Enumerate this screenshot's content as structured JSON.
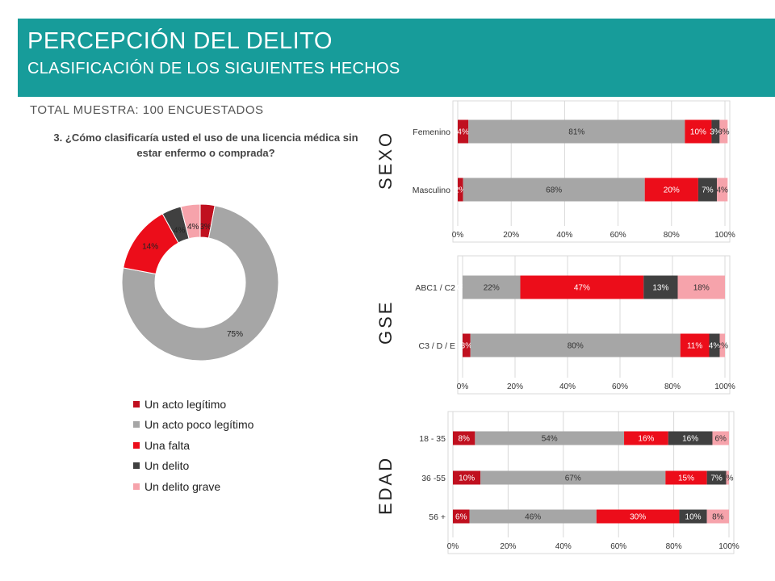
{
  "header": {
    "title": "PERCEPCIÓN DEL DELITO",
    "subtitle": "CLASIFICACIÓN DE LOS SIGUIENTES HECHOS"
  },
  "sample": "TOTAL MUESTRA: 100 ENCUESTADOS",
  "question": "3. ¿Cómo clasificaría usted el uso de una licencia médica sin estar enfermo o comprada?",
  "colors": {
    "accent": "#179c9a",
    "series": [
      "#c0101f",
      "#a6a6a6",
      "#ec0d1a",
      "#404040",
      "#f6a3ab"
    ]
  },
  "legend": [
    "Un acto legítimo",
    "Un acto poco legítimo",
    "Una falta",
    "Un delito",
    "Un delito grave"
  ],
  "panel_titles": {
    "sexo": "SEXO",
    "gse": "GSE",
    "edad": "EDAD"
  },
  "chart_data": [
    {
      "type": "pie",
      "variant": "donut",
      "labels": [
        "Un acto legítimo",
        "Un acto poco legítimo",
        "Una falta",
        "Un delito",
        "Un delito grave"
      ],
      "values": [
        3,
        75,
        14,
        4,
        4
      ],
      "data_labels": [
        "3%",
        "75%",
        "14%",
        "4%",
        "4%"
      ]
    },
    {
      "type": "bar",
      "orientation": "horizontal",
      "stacked": true,
      "group": "SEXO",
      "categories": [
        "Femenino",
        "Masculino"
      ],
      "series": [
        {
          "name": "Un acto legítimo",
          "values": [
            4,
            2
          ],
          "labels": [
            "4%",
            "2%"
          ]
        },
        {
          "name": "Un acto poco legítimo",
          "values": [
            81,
            68
          ],
          "labels": [
            "81%",
            "68%"
          ]
        },
        {
          "name": "Una falta",
          "values": [
            10,
            20
          ],
          "labels": [
            "10%",
            "20%"
          ]
        },
        {
          "name": "Un delito",
          "values": [
            3,
            7
          ],
          "labels": [
            "3%",
            "7%"
          ]
        },
        {
          "name": "Un delito grave",
          "values": [
            3,
            4
          ],
          "labels": [
            "3%",
            "4%"
          ]
        }
      ],
      "xticks": [
        "0%",
        "20%",
        "40%",
        "60%",
        "80%",
        "100%"
      ],
      "xlim": [
        0,
        100
      ]
    },
    {
      "type": "bar",
      "orientation": "horizontal",
      "stacked": true,
      "group": "GSE",
      "categories": [
        "ABC1 / C2",
        "C3 / D / E"
      ],
      "series": [
        {
          "name": "Un acto legítimo",
          "values": [
            0,
            3
          ],
          "labels": [
            "0%",
            "3%"
          ]
        },
        {
          "name": "Un acto poco legítimo",
          "values": [
            22,
            80
          ],
          "labels": [
            "22%",
            "80%"
          ]
        },
        {
          "name": "Una falta",
          "values": [
            47,
            11
          ],
          "labels": [
            "47%",
            "11%"
          ]
        },
        {
          "name": "Un delito",
          "values": [
            13,
            4
          ],
          "labels": [
            "13%",
            "4%"
          ]
        },
        {
          "name": "Un delito grave",
          "values": [
            18,
            2
          ],
          "labels": [
            "18%",
            "2%"
          ]
        }
      ],
      "xticks": [
        "0%",
        "20%",
        "40%",
        "60%",
        "80%",
        "100%"
      ],
      "xlim": [
        0,
        100
      ]
    },
    {
      "type": "bar",
      "orientation": "horizontal",
      "stacked": true,
      "group": "EDAD",
      "categories": [
        "18 - 35",
        "36 -55",
        "56 +"
      ],
      "series": [
        {
          "name": "Un acto legítimo",
          "values": [
            8,
            10,
            6
          ],
          "labels": [
            "8%",
            "10%",
            "6%"
          ]
        },
        {
          "name": "Un acto poco legítimo",
          "values": [
            54,
            67,
            46
          ],
          "labels": [
            "54%",
            "67%",
            "46%"
          ]
        },
        {
          "name": "Una falta",
          "values": [
            16,
            15,
            30
          ],
          "labels": [
            "16%",
            "15%",
            "30%"
          ]
        },
        {
          "name": "Un delito",
          "values": [
            16,
            7,
            10
          ],
          "labels": [
            "16%",
            "7%",
            "10%"
          ]
        },
        {
          "name": "Un delito grave",
          "values": [
            6,
            1,
            8
          ],
          "labels": [
            "6%",
            "1%",
            "8%"
          ]
        }
      ],
      "xticks": [
        "0%",
        "20%",
        "40%",
        "60%",
        "80%",
        "100%"
      ],
      "xlim": [
        0,
        100
      ]
    }
  ]
}
